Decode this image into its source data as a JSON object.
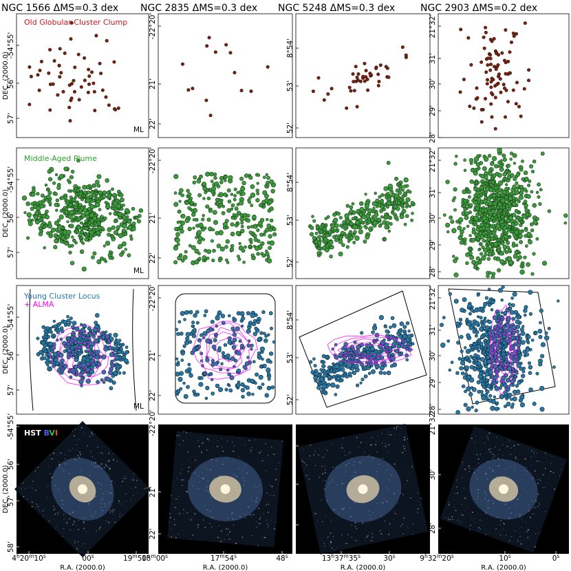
{
  "chart_data": {
    "type": "scatter",
    "figure_note_rows": [
      "Old Globular Cluster Clump",
      "Middle-Aged Plume",
      "Young Cluster Locus",
      "+ ALMA",
      "HST BVI"
    ],
    "legend": {
      "old": {
        "label": "Old Globular Cluster Clump",
        "color": "#c8191e",
        "marker": "#8b2a14"
      },
      "mid": {
        "label": "Middle-Aged Plume",
        "color": "#2ba02b",
        "marker": "#3a9a3a"
      },
      "young": {
        "label": "Young Cluster Locus",
        "color": "#1f77b4",
        "marker": "#2a7fa8"
      },
      "alma": {
        "label": "+ ALMA",
        "color": "#ff00ff"
      },
      "hst": {
        "label": "HST",
        "b": "B",
        "v": "V",
        "i": "I",
        "b_color": "#4f5bff",
        "v_color": "#36c036",
        "i_color": "#ff4040"
      },
      "ml": "ML"
    },
    "xlabel": "R.A. (2000.0)",
    "ylabel": "DEC. (2000.0)",
    "galaxies": [
      {
        "name": "NGC 1566",
        "title": "NGC 1566   ΔMS=0.3 dex",
        "dec_ticks": [
          "-54°55'",
          "56'",
          "57'",
          "58'"
        ],
        "ra_ticks": [
          "4h20m10s",
          "00s",
          "19m50s"
        ],
        "ra_tick_parts": [
          [
            {
              "t": "4"
            },
            {
              "t": "h",
              "sup": true
            },
            {
              "t": "20"
            },
            {
              "t": "m",
              "sup": true
            },
            {
              "t": "10"
            },
            {
              "t": "s",
              "sup": true
            }
          ],
          [
            {
              "t": "00"
            },
            {
              "t": "s",
              "sup": true
            }
          ],
          [
            {
              "t": "19"
            },
            {
              "t": "m",
              "sup": true
            },
            {
              "t": "50"
            },
            {
              "t": "s",
              "sup": true
            }
          ]
        ],
        "counts": {
          "old": 56,
          "mid": 520,
          "young": 450
        }
      },
      {
        "name": "NGC 2835",
        "title": "NGC 2835   ΔMS=0.3 dex",
        "dec_ticks": [
          "-22°20'",
          "21'",
          "22'"
        ],
        "ra_ticks": [
          "18m00s",
          "17m54s",
          "48s"
        ],
        "ra_tick_parts": [
          [
            {
              "t": "18"
            },
            {
              "t": "m",
              "sup": true
            },
            {
              "t": "00"
            },
            {
              "t": "s",
              "sup": true
            }
          ],
          [
            {
              "t": "17"
            },
            {
              "t": "m",
              "sup": true
            },
            {
              "t": "54"
            },
            {
              "t": "s",
              "sup": true
            }
          ],
          [
            {
              "t": "48"
            },
            {
              "t": "s",
              "sup": true
            }
          ]
        ],
        "counts": {
          "old": 14,
          "mid": 300,
          "young": 230
        }
      },
      {
        "name": "NGC 5248",
        "title": "NGC 5248   ΔMS=0.3 dex",
        "dec_ticks": [
          "8°54'",
          "53'",
          "52'"
        ],
        "ra_ticks": [
          "13h37m35s",
          "30s"
        ],
        "ra_tick_parts": [
          [
            {
              "t": "13"
            },
            {
              "t": "h",
              "sup": true
            },
            {
              "t": "37"
            },
            {
              "t": "m",
              "sup": true
            },
            {
              "t": "35"
            },
            {
              "t": "s",
              "sup": true
            }
          ],
          [
            {
              "t": "30"
            },
            {
              "t": "s",
              "sup": true
            }
          ]
        ],
        "counts": {
          "old": 42,
          "mid": 330,
          "young": 330
        }
      },
      {
        "name": "NGC 2903",
        "title": "NGC 2903   ΔMS=0.2 dex",
        "dec_ticks": [
          "21°32'",
          "31'",
          "30'",
          "29'",
          "28'"
        ],
        "dec_ticks_hst": [
          "21°32'",
          "30'",
          "28'"
        ],
        "ra_ticks": [
          "9h32m20s",
          "10s",
          "0s"
        ],
        "ra_tick_parts": [
          [
            {
              "t": "9"
            },
            {
              "t": "h",
              "sup": true
            },
            {
              "t": "32"
            },
            {
              "t": "m",
              "sup": true
            },
            {
              "t": "20"
            },
            {
              "t": "s",
              "sup": true
            }
          ],
          [
            {
              "t": "10"
            },
            {
              "t": "s",
              "sup": true
            }
          ],
          [
            {
              "t": "0"
            },
            {
              "t": "s",
              "sup": true
            }
          ]
        ],
        "counts": {
          "old": 90,
          "mid": 750,
          "young": 640
        }
      }
    ]
  }
}
